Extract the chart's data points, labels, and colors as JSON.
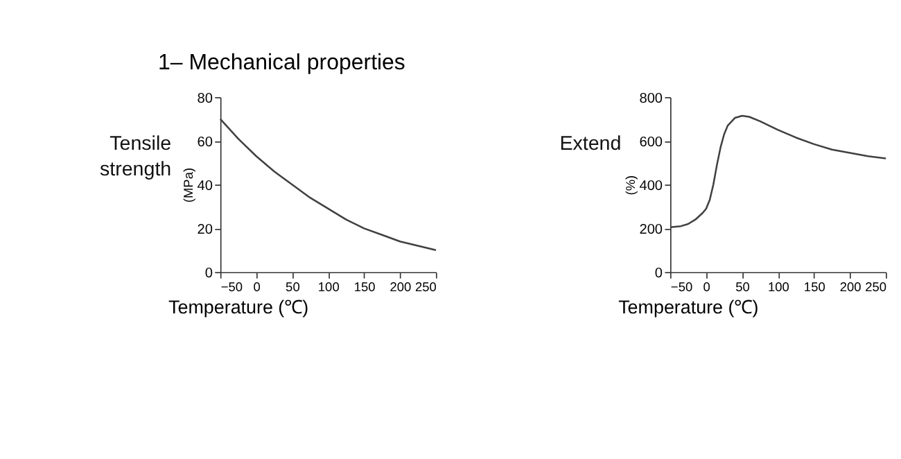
{
  "chart_data": [
    {
      "type": "line",
      "title": "1– Mechanical properties",
      "xlabel": "Temperature (℃)",
      "ylabel": "(MPa)",
      "annotations": [
        "Tensile strength"
      ],
      "x": [
        -50,
        -25,
        0,
        25,
        50,
        75,
        100,
        125,
        150,
        175,
        200,
        225,
        250
      ],
      "series": [
        {
          "color": "#404040",
          "values": [
            70,
            61,
            53,
            46,
            40,
            34,
            29,
            24,
            20,
            17,
            14,
            12,
            10
          ]
        }
      ],
      "xlim": [
        -50,
        250
      ],
      "xticks": [
        -50,
        0,
        50,
        100,
        150,
        200,
        250
      ],
      "ylim": [
        0,
        80
      ],
      "yticks": [
        0,
        20,
        40,
        60,
        80
      ],
      "grid": false,
      "marker": "none",
      "line_style": "solid"
    },
    {
      "type": "line",
      "xlabel": "Temperature (℃)",
      "ylabel": "(%)",
      "annotations": [
        "Extend"
      ],
      "x": [
        -50,
        -35,
        -25,
        -15,
        -5,
        0,
        5,
        10,
        15,
        20,
        25,
        30,
        40,
        50,
        60,
        75,
        100,
        125,
        150,
        175,
        200,
        225,
        250
      ],
      "series": [
        {
          "color": "#404040",
          "values": [
            205,
            210,
            220,
            240,
            270,
            290,
            330,
            400,
            490,
            570,
            630,
            670,
            705,
            715,
            710,
            690,
            650,
            615,
            585,
            560,
            545,
            530,
            520
          ]
        }
      ],
      "xlim": [
        -50,
        250
      ],
      "xticks": [
        -50,
        0,
        50,
        100,
        150,
        200,
        250
      ],
      "ylim": [
        0,
        800
      ],
      "yticks": [
        0,
        200,
        400,
        600,
        800
      ],
      "grid": false,
      "marker": "none",
      "line_style": "solid"
    }
  ]
}
